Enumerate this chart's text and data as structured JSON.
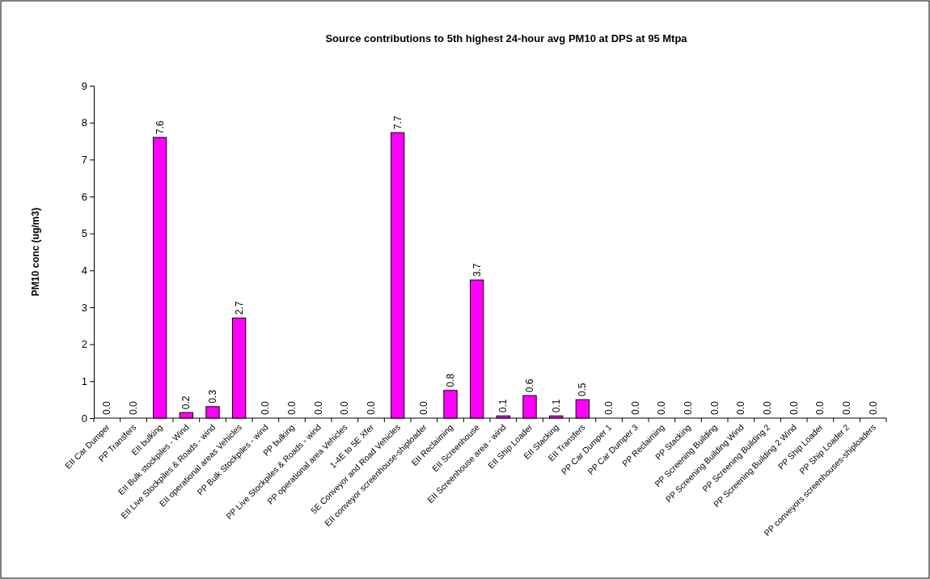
{
  "chart_data": {
    "type": "bar",
    "title": "Source contributions to 5th highest 24-hour avg PM10 at DPS at 95 Mtpa",
    "ylabel": "PM10 conc (ug/m3)",
    "categories": [
      "EII Car Dumper",
      "PP Transfers",
      "EII bulking",
      "EII Bulk stockpiles - Wind",
      "EII Live Stockpiles & Roads - wind",
      "EII operational areas Vehicles",
      "PP Bulk Stockpiles - wind",
      "PP bulking",
      "PP Live Stockpiles & Roads - wind",
      "PP operational area Vehicles",
      "1-4E to 5E Xfer",
      "5E Conveyor and Road Vehicles",
      "EII conveyor screenhouse-shiploader",
      "EII Reclaiming",
      "EII Screenhouse",
      "EII Screenhouse area - wind",
      "EII Ship Loader",
      "EII Stacking",
      "EII Transfers",
      "PP Car Dumper 1",
      "PP Car Dumper 3",
      "PP Reclaiming",
      "PP Stacking",
      "PP Screening Building",
      "PP Screening Building Wind",
      "PP Screening Building 2",
      "PP Screening Building 2 Wind",
      "PP Ship Loader",
      "PP Ship Loader 2",
      "PP conveyors screenhouses-shiploaders"
    ],
    "values": [
      0,
      0,
      7.6,
      0.15,
      0.31,
      2.71,
      0,
      0,
      0,
      0,
      0,
      7.73,
      0,
      0.75,
      3.74,
      0.06,
      0.61,
      0.06,
      0.5,
      0,
      0,
      0,
      0,
      0,
      0,
      0,
      0,
      0,
      0,
      0
    ],
    "value_labels": [
      "0.0",
      "0.0",
      "7.6",
      "0.2",
      "0.3",
      "2.7",
      "0.0",
      "0.0",
      "0.0",
      "0.0",
      "0.0",
      "7.7",
      "0.0",
      "0.8",
      "3.7",
      "0.1",
      "0.6",
      "0.1",
      "0.5",
      "0.0",
      "0.0",
      "0.0",
      "0.0",
      "0.0",
      "0.0",
      "0.0",
      "0.0",
      "0.0",
      "0.0",
      "0.0"
    ],
    "color": "#ff00ff",
    "ylim": [
      0,
      9
    ],
    "yticks": [
      0,
      1,
      2,
      3,
      4,
      5,
      6,
      7,
      8,
      9
    ],
    "grid": false,
    "legend": false
  }
}
